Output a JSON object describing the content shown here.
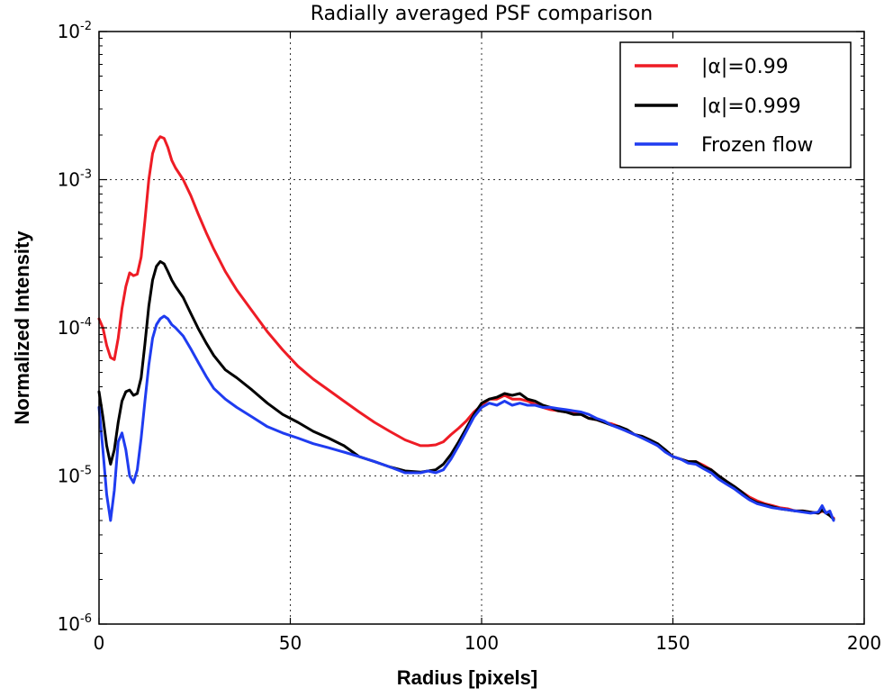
{
  "chart_data": {
    "type": "line",
    "title": "Radially averaged PSF comparison",
    "xlabel": "Radius [pixels]",
    "ylabel": "Normalized Intensity",
    "xscale": "linear",
    "yscale": "log",
    "xlim": [
      0,
      200
    ],
    "ylim": [
      1e-06,
      0.01
    ],
    "grid": true,
    "legend_position": "top-right",
    "x_ticks": [
      {
        "value": 0,
        "label": "0"
      },
      {
        "value": 50,
        "label": "50"
      },
      {
        "value": 100,
        "label": "100"
      },
      {
        "value": 150,
        "label": "150"
      },
      {
        "value": 200,
        "label": "200"
      }
    ],
    "y_ticks": [
      {
        "value": 1e-06,
        "base": "10",
        "exp": "-6"
      },
      {
        "value": 1e-05,
        "base": "10",
        "exp": "-5"
      },
      {
        "value": 0.0001,
        "base": "10",
        "exp": "-4"
      },
      {
        "value": 0.001,
        "base": "10",
        "exp": "-3"
      },
      {
        "value": 0.01,
        "base": "10",
        "exp": "-2"
      }
    ],
    "series": [
      {
        "name": "|α|=0.99",
        "color": "#ee1c25",
        "x": [
          0,
          1,
          2,
          3,
          4,
          5,
          6,
          7,
          8,
          9,
          10,
          11,
          12,
          13,
          14,
          15,
          16,
          17,
          18,
          19,
          20,
          22,
          24,
          26,
          28,
          30,
          33,
          36,
          40,
          44,
          48,
          52,
          56,
          60,
          64,
          68,
          72,
          76,
          80,
          84,
          86,
          88,
          90,
          92,
          94,
          96,
          98,
          100,
          102,
          104,
          106,
          108,
          110,
          112,
          114,
          116,
          118,
          120,
          122,
          124,
          126,
          128,
          130,
          132,
          134,
          136,
          138,
          140,
          142,
          144,
          146,
          148,
          150,
          152,
          154,
          156,
          158,
          160,
          162,
          164,
          166,
          168,
          170,
          172,
          174,
          176,
          178,
          180,
          182,
          184,
          186,
          188,
          189,
          190,
          191,
          192
        ],
        "y": [
          0.000115,
          0.0001,
          7.6e-05,
          6.3e-05,
          6.1e-05,
          8.5e-05,
          0.000135,
          0.00019,
          0.000235,
          0.000225,
          0.00023,
          0.0003,
          0.00053,
          0.001,
          0.0015,
          0.0018,
          0.00195,
          0.0019,
          0.00165,
          0.00135,
          0.0012,
          0.001,
          0.00078,
          0.00058,
          0.00044,
          0.00034,
          0.00024,
          0.00018,
          0.00013,
          9.4e-05,
          7.1e-05,
          5.5e-05,
          4.5e-05,
          3.8e-05,
          3.2e-05,
          2.7e-05,
          2.3e-05,
          2e-05,
          1.75e-05,
          1.6e-05,
          1.6e-05,
          1.62e-05,
          1.7e-05,
          1.9e-05,
          2.1e-05,
          2.35e-05,
          2.7e-05,
          3e-05,
          3.3e-05,
          3.3e-05,
          3.5e-05,
          3.3e-05,
          3.3e-05,
          3.2e-05,
          3.05e-05,
          2.9e-05,
          2.8e-05,
          2.75e-05,
          2.7e-05,
          2.65e-05,
          2.6e-05,
          2.45e-05,
          2.4e-05,
          2.3e-05,
          2.25e-05,
          2.15e-05,
          2e-05,
          1.9e-05,
          1.85e-05,
          1.75e-05,
          1.6e-05,
          1.5e-05,
          1.35e-05,
          1.3e-05,
          1.25e-05,
          1.25e-05,
          1.18e-05,
          1.1e-05,
          1e-05,
          9.2e-06,
          8.5e-06,
          7.8e-06,
          7.2e-06,
          6.8e-06,
          6.5e-06,
          6.3e-06,
          6.1e-06,
          6e-06,
          5.8e-06,
          5.8e-06,
          5.7e-06,
          5.6e-06,
          5.8e-06,
          5.7e-06,
          5.4e-06,
          5.2e-06
        ]
      },
      {
        "name": "|α|=0.999",
        "color": "#000000",
        "x": [
          0,
          1,
          2,
          3,
          4,
          5,
          6,
          7,
          8,
          9,
          10,
          11,
          12,
          13,
          14,
          15,
          16,
          17,
          18,
          19,
          20,
          22,
          24,
          26,
          28,
          30,
          33,
          36,
          40,
          44,
          48,
          52,
          56,
          60,
          64,
          68,
          72,
          76,
          80,
          84,
          86,
          88,
          90,
          92,
          94,
          96,
          98,
          100,
          102,
          104,
          106,
          108,
          110,
          112,
          114,
          116,
          118,
          120,
          122,
          124,
          126,
          128,
          130,
          132,
          134,
          136,
          138,
          140,
          142,
          144,
          146,
          148,
          150,
          152,
          154,
          156,
          158,
          160,
          162,
          164,
          166,
          168,
          170,
          172,
          174,
          176,
          178,
          180,
          182,
          184,
          186,
          188,
          189,
          190,
          191,
          192
        ],
        "y": [
          3.7e-05,
          2.5e-05,
          1.6e-05,
          1.2e-05,
          1.5e-05,
          2.3e-05,
          3.2e-05,
          3.7e-05,
          3.8e-05,
          3.5e-05,
          3.6e-05,
          4.6e-05,
          7.8e-05,
          0.00014,
          0.00021,
          0.00026,
          0.00028,
          0.00027,
          0.00024,
          0.00021,
          0.00019,
          0.00016,
          0.000125,
          9.8e-05,
          7.9e-05,
          6.5e-05,
          5.2e-05,
          4.6e-05,
          3.8e-05,
          3.1e-05,
          2.6e-05,
          2.3e-05,
          2e-05,
          1.8e-05,
          1.6e-05,
          1.35e-05,
          1.25e-05,
          1.15e-05,
          1.08e-05,
          1.06e-05,
          1.08e-05,
          1.1e-05,
          1.2e-05,
          1.4e-05,
          1.7e-05,
          2.1e-05,
          2.6e-05,
          3.1e-05,
          3.3e-05,
          3.4e-05,
          3.6e-05,
          3.5e-05,
          3.6e-05,
          3.3e-05,
          3.2e-05,
          3e-05,
          2.9e-05,
          2.75e-05,
          2.7e-05,
          2.6e-05,
          2.6e-05,
          2.45e-05,
          2.4e-05,
          2.3e-05,
          2.2e-05,
          2.15e-05,
          2.05e-05,
          1.9e-05,
          1.85e-05,
          1.75e-05,
          1.65e-05,
          1.5e-05,
          1.35e-05,
          1.3e-05,
          1.25e-05,
          1.25e-05,
          1.15e-05,
          1.1e-05,
          1e-05,
          9.2e-06,
          8.5e-06,
          7.8e-06,
          7e-06,
          6.6e-06,
          6.4e-06,
          6.2e-06,
          6e-06,
          5.9e-06,
          5.8e-06,
          5.8e-06,
          5.7e-06,
          5.6e-06,
          5.9e-06,
          5.6e-06,
          5.4e-06,
          5.1e-06
        ]
      },
      {
        "name": "Frozen flow",
        "color": "#1f3cf0",
        "x": [
          0,
          1,
          2,
          3,
          4,
          5,
          6,
          7,
          8,
          9,
          10,
          11,
          12,
          13,
          14,
          15,
          16,
          17,
          18,
          19,
          20,
          22,
          24,
          26,
          28,
          30,
          33,
          36,
          40,
          44,
          48,
          52,
          56,
          60,
          64,
          68,
          72,
          76,
          80,
          84,
          86,
          88,
          90,
          92,
          94,
          96,
          98,
          100,
          102,
          104,
          106,
          108,
          110,
          112,
          114,
          116,
          118,
          120,
          122,
          124,
          126,
          128,
          130,
          132,
          134,
          136,
          138,
          140,
          142,
          144,
          146,
          148,
          150,
          152,
          154,
          156,
          158,
          160,
          162,
          164,
          166,
          168,
          170,
          172,
          174,
          176,
          178,
          180,
          182,
          184,
          186,
          188,
          189,
          190,
          191,
          192
        ],
        "y": [
          2.9e-05,
          1.5e-05,
          7.5e-06,
          5e-06,
          8e-06,
          1.7e-05,
          1.95e-05,
          1.5e-05,
          1e-05,
          9e-06,
          1.1e-05,
          1.8e-05,
          3.2e-05,
          5.6e-05,
          8.5e-05,
          0.000105,
          0.000115,
          0.00012,
          0.000115,
          0.000105,
          0.0001,
          8.8e-05,
          7.2e-05,
          5.8e-05,
          4.7e-05,
          3.9e-05,
          3.3e-05,
          2.9e-05,
          2.5e-05,
          2.15e-05,
          1.95e-05,
          1.8e-05,
          1.65e-05,
          1.55e-05,
          1.45e-05,
          1.35e-05,
          1.25e-05,
          1.15e-05,
          1.05e-05,
          1.05e-05,
          1.08e-05,
          1.05e-05,
          1.1e-05,
          1.3e-05,
          1.6e-05,
          2e-05,
          2.5e-05,
          2.9e-05,
          3.1e-05,
          3e-05,
          3.2e-05,
          3e-05,
          3.1e-05,
          3e-05,
          3e-05,
          2.9e-05,
          2.9e-05,
          2.85e-05,
          2.8e-05,
          2.75e-05,
          2.7e-05,
          2.6e-05,
          2.45e-05,
          2.35e-05,
          2.2e-05,
          2.1e-05,
          2e-05,
          1.9e-05,
          1.8e-05,
          1.7e-05,
          1.6e-05,
          1.45e-05,
          1.35e-05,
          1.3e-05,
          1.22e-05,
          1.2e-05,
          1.12e-05,
          1.05e-05,
          9.5e-06,
          8.8e-06,
          8.2e-06,
          7.5e-06,
          6.9e-06,
          6.5e-06,
          6.3e-06,
          6.1e-06,
          6e-06,
          5.9e-06,
          5.8e-06,
          5.7e-06,
          5.6e-06,
          5.7e-06,
          6.3e-06,
          5.6e-06,
          5.8e-06,
          5e-06
        ]
      }
    ]
  }
}
